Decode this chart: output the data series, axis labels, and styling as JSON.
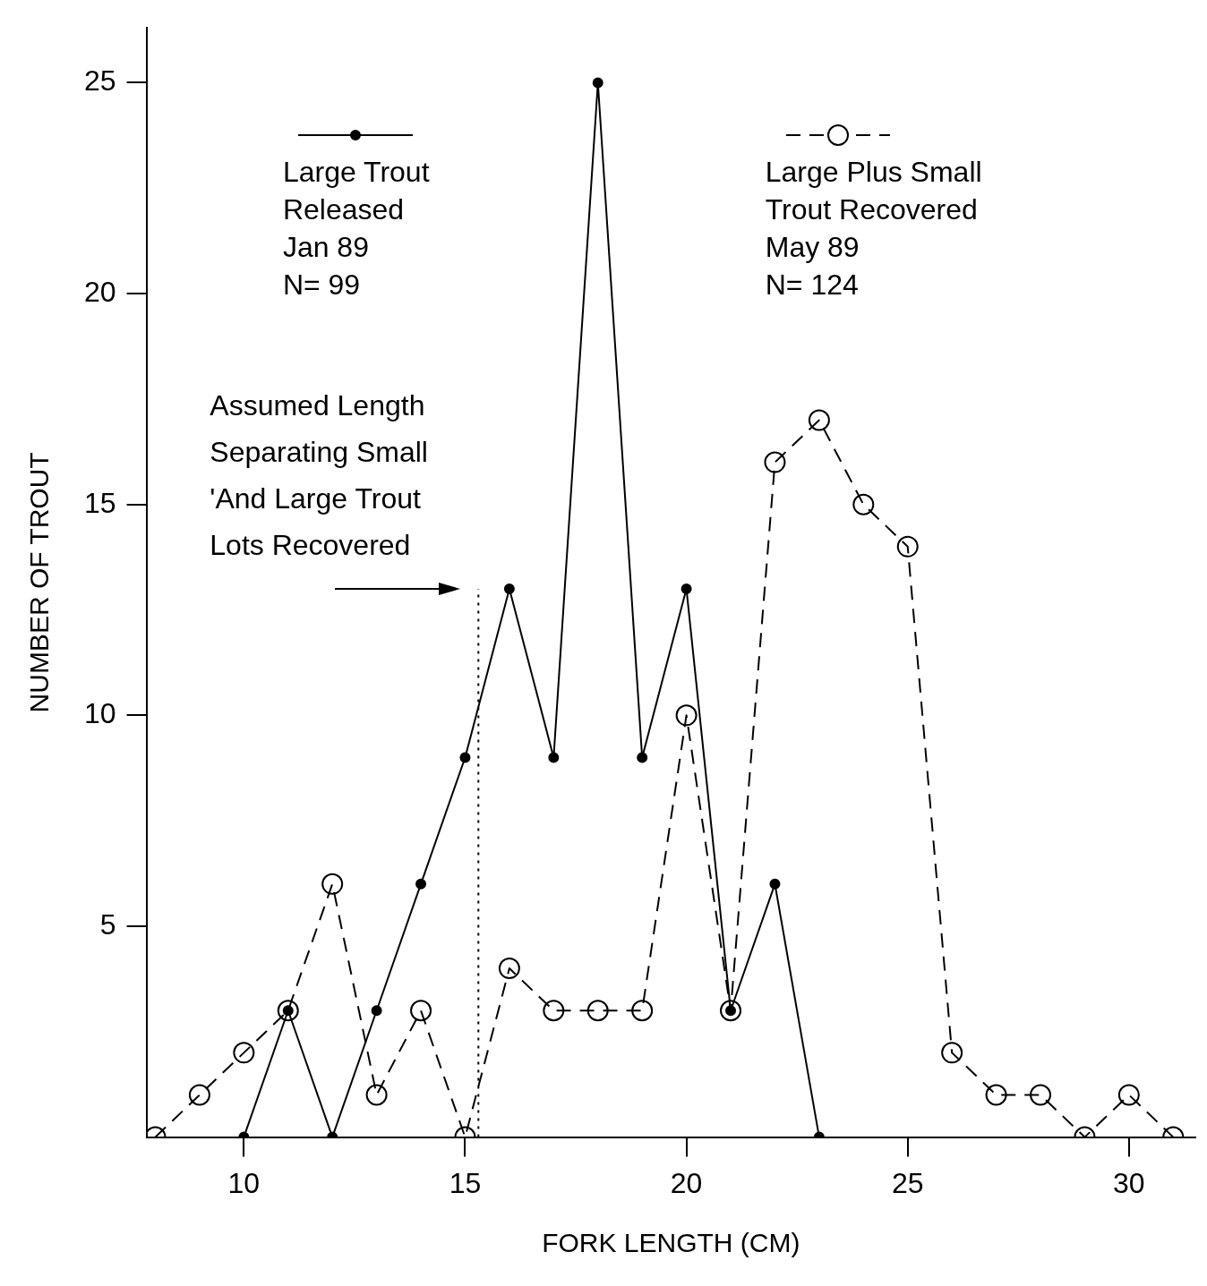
{
  "chart_data": {
    "type": "line",
    "xlabel": "FORK LENGTH (CM)",
    "ylabel": "NUMBER OF TROUT",
    "xlim": [
      7.8,
      31.5
    ],
    "ylim": [
      0,
      26.3
    ],
    "xticks": [
      10,
      15,
      20,
      25,
      30
    ],
    "yticks": [
      5,
      10,
      15,
      20,
      25
    ],
    "grid": false,
    "legend": "top",
    "series": [
      {
        "name": "Large Trout\nReleased\nJan 89\nN= 99",
        "color": "#000000",
        "marker": "circle",
        "line_style": "solid",
        "x": [
          10,
          11,
          12,
          13,
          14,
          15,
          16,
          17,
          18,
          19,
          20,
          21,
          22,
          23
        ],
        "values": [
          0,
          3,
          0,
          3,
          6,
          9,
          13,
          9,
          25,
          9,
          13,
          3,
          6,
          0
        ]
      },
      {
        "name": "Large Plus Small\nTrout Recovered\nMay 89\nN= 124",
        "color": "#000000",
        "marker": "circle",
        "line_style": "dashed",
        "x": [
          8,
          9,
          10,
          11,
          12,
          13,
          14,
          15,
          16,
          17,
          18,
          19,
          20,
          21,
          22,
          23,
          24,
          25,
          26,
          27,
          28,
          29,
          30,
          31
        ],
        "values": [
          0,
          1,
          2,
          3,
          6,
          1,
          3,
          0,
          4,
          3,
          3,
          3,
          10,
          3,
          16,
          17,
          15,
          14,
          2,
          1,
          1,
          0,
          1,
          0
        ]
      }
    ],
    "ref_lines": [
      {
        "axis": "x",
        "value": 15.3,
        "line_style": "dotted"
      }
    ],
    "annotations": [
      {
        "text": "Assumed Length\nSeparating Small\n'And Large Trout\nLots Recovered",
        "x": 15.3,
        "y": 13
      }
    ]
  }
}
